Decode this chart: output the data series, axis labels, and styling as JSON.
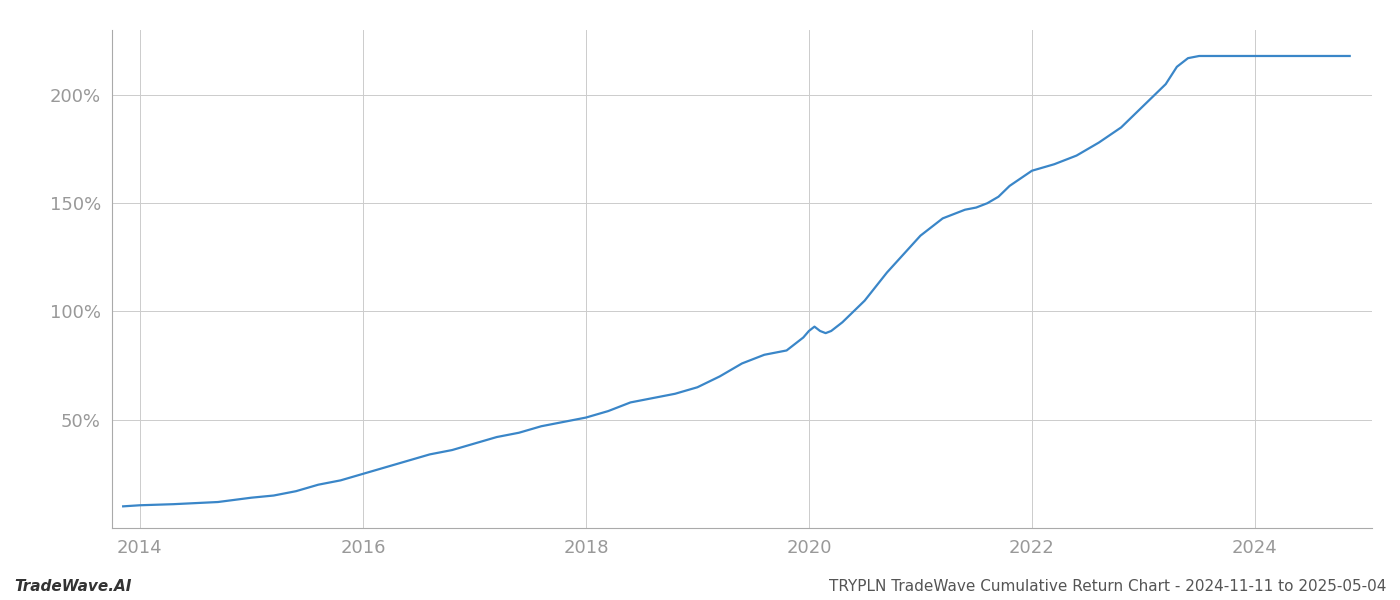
{
  "footer_left": "TradeWave.AI",
  "footer_right": "TRYPLN TradeWave Cumulative Return Chart - 2024-11-11 to 2025-05-04",
  "line_color": "#3a86c8",
  "background_color": "#ffffff",
  "grid_color": "#cccccc",
  "data_points": [
    [
      2013.85,
      10
    ],
    [
      2014.0,
      10.5
    ],
    [
      2014.3,
      11
    ],
    [
      2014.7,
      12
    ],
    [
      2015.0,
      14
    ],
    [
      2015.1,
      14.5
    ],
    [
      2015.2,
      15
    ],
    [
      2015.4,
      17
    ],
    [
      2015.6,
      20
    ],
    [
      2015.8,
      22
    ],
    [
      2016.0,
      25
    ],
    [
      2016.2,
      28
    ],
    [
      2016.4,
      31
    ],
    [
      2016.6,
      34
    ],
    [
      2016.8,
      36
    ],
    [
      2017.0,
      39
    ],
    [
      2017.2,
      42
    ],
    [
      2017.4,
      44
    ],
    [
      2017.6,
      47
    ],
    [
      2017.8,
      49
    ],
    [
      2018.0,
      51
    ],
    [
      2018.2,
      54
    ],
    [
      2018.4,
      58
    ],
    [
      2018.6,
      60
    ],
    [
      2018.8,
      62
    ],
    [
      2019.0,
      65
    ],
    [
      2019.2,
      70
    ],
    [
      2019.4,
      76
    ],
    [
      2019.6,
      80
    ],
    [
      2019.8,
      82
    ],
    [
      2019.85,
      84
    ],
    [
      2019.9,
      86
    ],
    [
      2019.95,
      88
    ],
    [
      2020.0,
      91
    ],
    [
      2020.05,
      93
    ],
    [
      2020.1,
      91
    ],
    [
      2020.15,
      90
    ],
    [
      2020.2,
      91
    ],
    [
      2020.3,
      95
    ],
    [
      2020.5,
      105
    ],
    [
      2020.7,
      118
    ],
    [
      2021.0,
      135
    ],
    [
      2021.2,
      143
    ],
    [
      2021.4,
      147
    ],
    [
      2021.5,
      148
    ],
    [
      2021.6,
      150
    ],
    [
      2021.7,
      153
    ],
    [
      2021.8,
      158
    ],
    [
      2022.0,
      165
    ],
    [
      2022.2,
      168
    ],
    [
      2022.4,
      172
    ],
    [
      2022.5,
      175
    ],
    [
      2022.6,
      178
    ],
    [
      2022.8,
      185
    ],
    [
      2023.0,
      195
    ],
    [
      2023.2,
      205
    ],
    [
      2023.3,
      213
    ],
    [
      2023.4,
      217
    ],
    [
      2023.5,
      218
    ],
    [
      2023.8,
      218
    ],
    [
      2024.0,
      218
    ],
    [
      2024.5,
      218
    ],
    [
      2024.85,
      218
    ]
  ],
  "ylim": [
    0,
    230
  ],
  "yticks": [
    50,
    100,
    150,
    200
  ],
  "ytick_labels": [
    "50%",
    "100%",
    "150%",
    "200%"
  ],
  "xtick_positions": [
    2014,
    2016,
    2018,
    2020,
    2022,
    2024
  ],
  "xlim_start": 2013.75,
  "xlim_end": 2025.05,
  "tick_color": "#999999",
  "spine_color": "#aaaaaa",
  "footer_fontsize": 11,
  "tick_fontsize": 13,
  "line_width": 1.6
}
